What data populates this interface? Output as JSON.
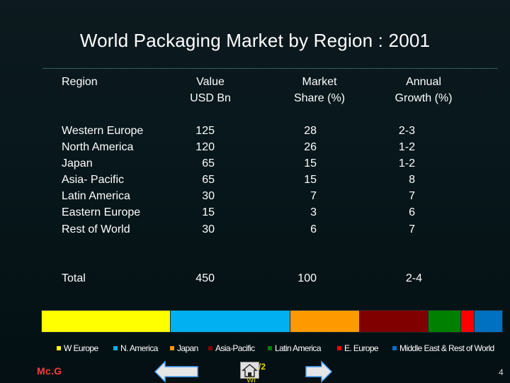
{
  "title": "World Packaging Market by Region : 2001",
  "table": {
    "headers": [
      "Region",
      "Value\nUSD Bn",
      "Market\nShare (%)",
      "Annual\nGrowth (%)"
    ],
    "rows": [
      {
        "region": "Western Europe",
        "value": "125",
        "share": "28",
        "growth": "2-3"
      },
      {
        "region": "North America",
        "value": "120",
        "share": "26",
        "growth": "1-2"
      },
      {
        "region": "Japan",
        "value": "65",
        "share": "15",
        "growth": "1-2"
      },
      {
        "region": "Asia- Pacific",
        "value": "65",
        "share": "15",
        "growth": "8"
      },
      {
        "region": "Latin America",
        "value": "30",
        "share": "7",
        "growth": "7"
      },
      {
        "region": "Eastern Europe",
        "value": "15",
        "share": "3",
        "growth": "6"
      },
      {
        "region": "Rest of World",
        "value": "30",
        "share": "6",
        "growth": "7"
      }
    ],
    "total": {
      "region": "Total",
      "value": "450",
      "share": "100",
      "growth": "2-4"
    }
  },
  "share_bar": {
    "segments": [
      {
        "value": 28,
        "color": "#ffff00"
      },
      {
        "value": 26,
        "color": "#00b0f0"
      },
      {
        "value": 15,
        "color": "#ff9900"
      },
      {
        "value": 15,
        "color": "#800000"
      },
      {
        "value": 7,
        "color": "#008000"
      },
      {
        "value": 3,
        "color": "#ff0000"
      },
      {
        "value": 6,
        "color": "#0070c0"
      }
    ]
  },
  "legend": [
    {
      "label": "W Europe",
      "color": "#ffff00"
    },
    {
      "label": "N. America",
      "color": "#00b0f0"
    },
    {
      "label": "Japan",
      "color": "#ff9900"
    },
    {
      "label": "Asia-Pacific",
      "color": "#800000"
    },
    {
      "label": "Latin America",
      "color": "#008000"
    },
    {
      "label": "E. Europe",
      "color": "#ff0000"
    },
    {
      "label": "Middle East & Rest of World",
      "color": "#0070c0"
    }
  ],
  "footer": {
    "brand": "Mc.G",
    "home_tail": "/2",
    "home_tail2": "Wi",
    "page_number": "4"
  },
  "icons": {
    "prev": "arrow-left-icon",
    "home": "home-icon",
    "next": "arrow-right-icon"
  },
  "colors": {
    "accent_brand": "#ff3a3a",
    "nav_arrow": "#e6e6e6"
  }
}
